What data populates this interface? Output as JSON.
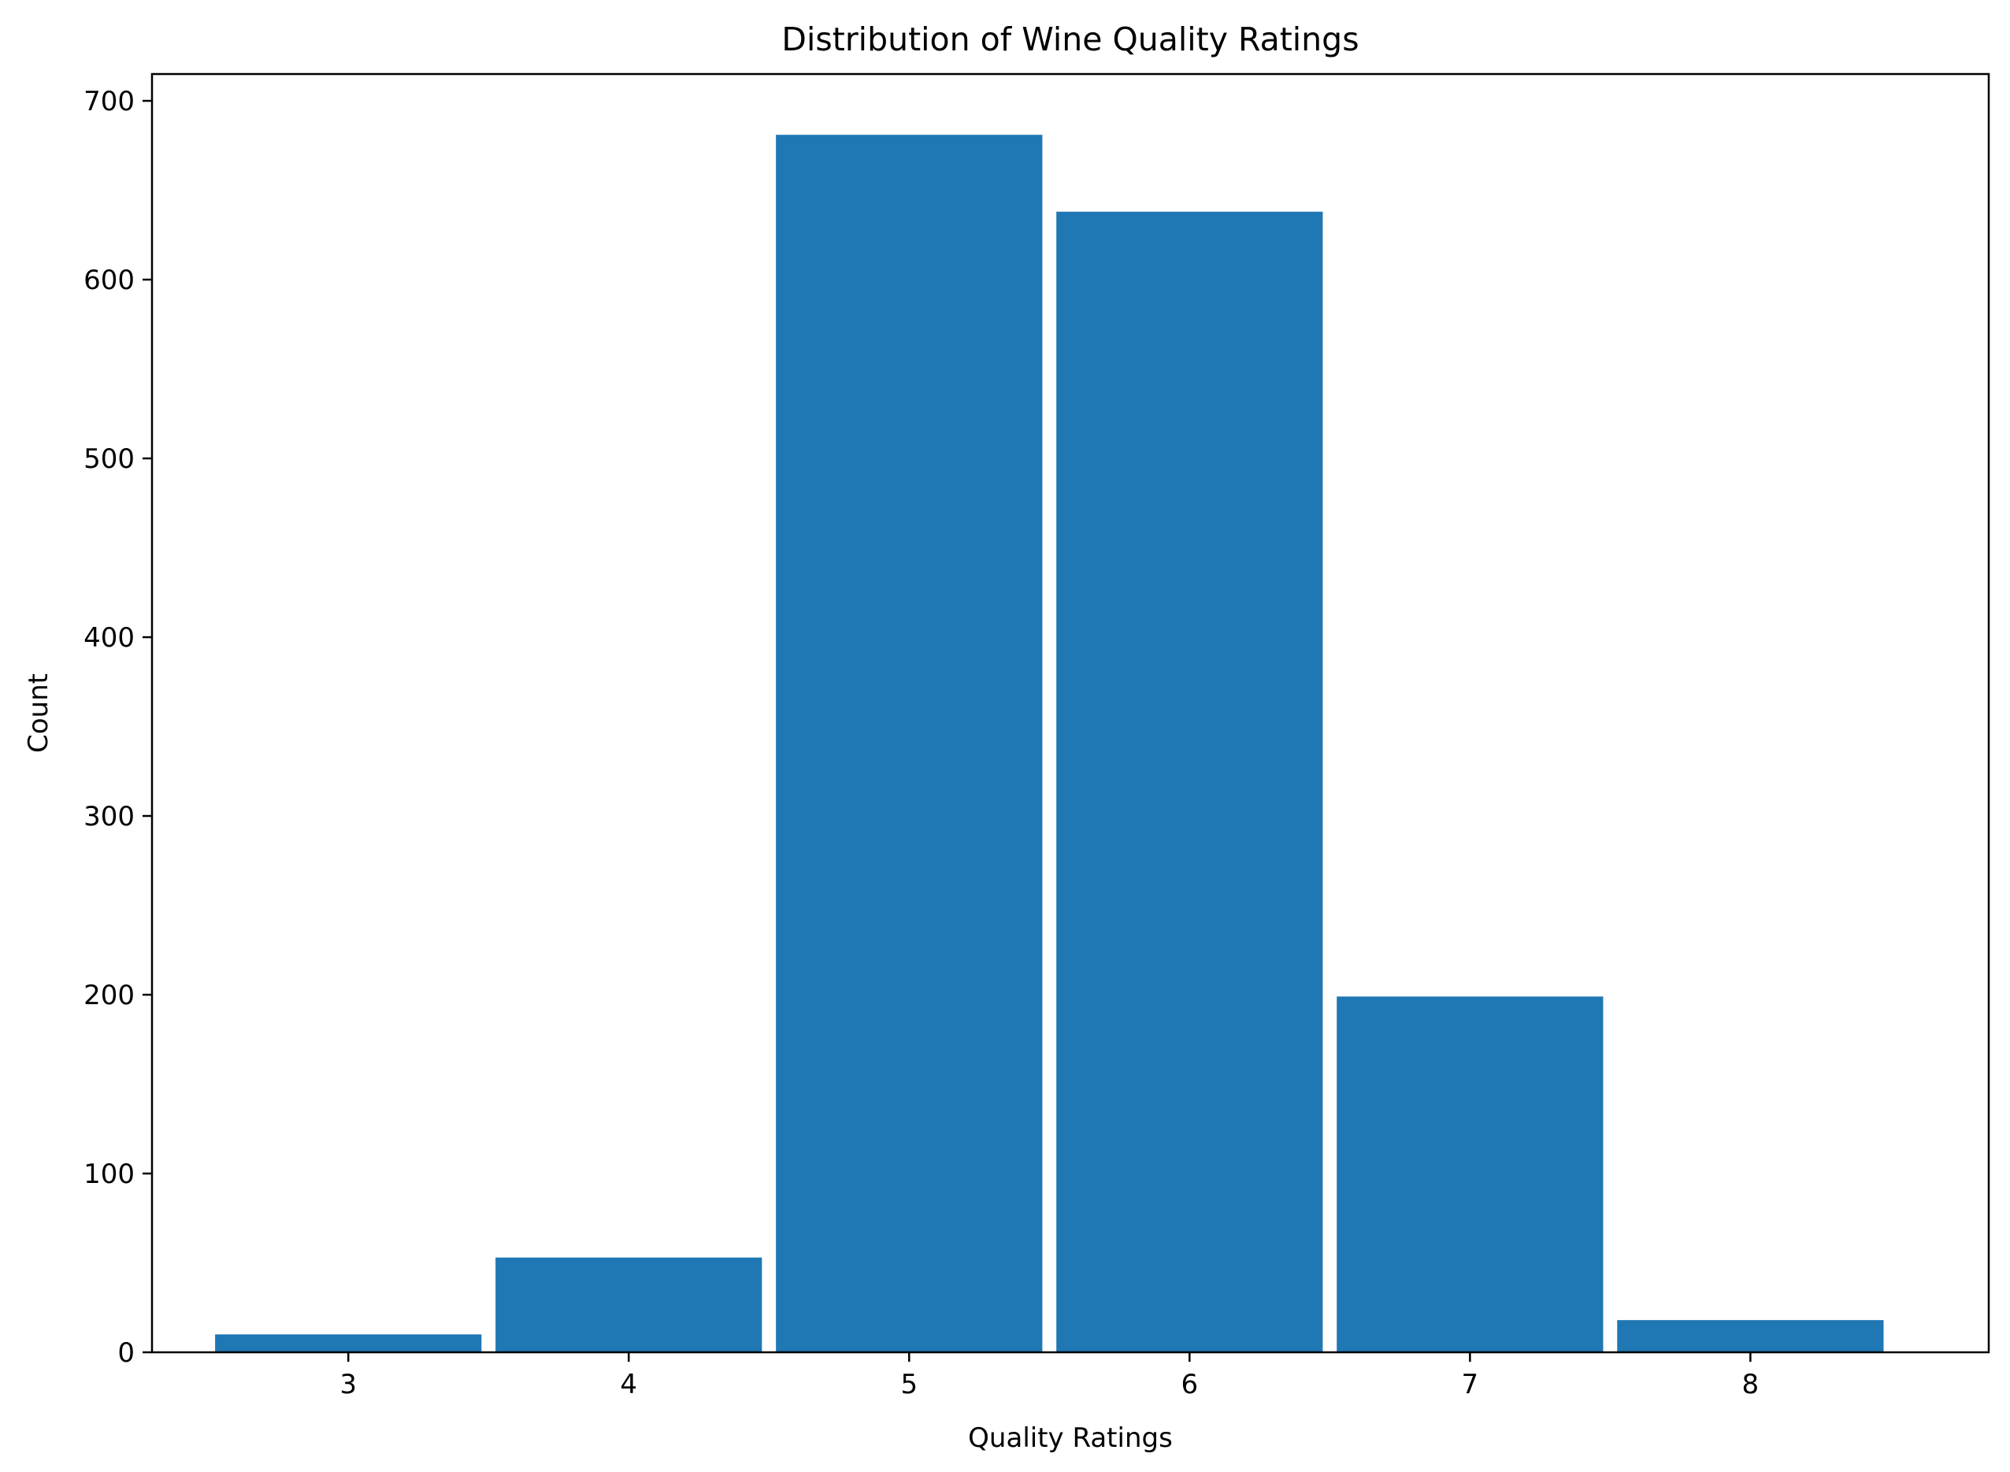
{
  "chart_data": {
    "type": "bar",
    "title": "Distribution of Wine Quality Ratings",
    "xlabel": "Quality Ratings",
    "ylabel": "Count",
    "categories": [
      "3",
      "4",
      "5",
      "6",
      "7",
      "8"
    ],
    "x": [
      3,
      4,
      5,
      6,
      7,
      8
    ],
    "values": [
      10,
      53,
      681,
      638,
      199,
      18
    ],
    "xlim": [
      2.3,
      8.85
    ],
    "ylim": [
      0,
      715
    ],
    "yticks": [
      0,
      100,
      200,
      300,
      400,
      500,
      600,
      700
    ],
    "bar_width": 0.95,
    "grid": false,
    "legend": "none",
    "colors": {
      "bar": "#1f77b4",
      "axis": "#000000",
      "background": "#ffffff"
    }
  }
}
